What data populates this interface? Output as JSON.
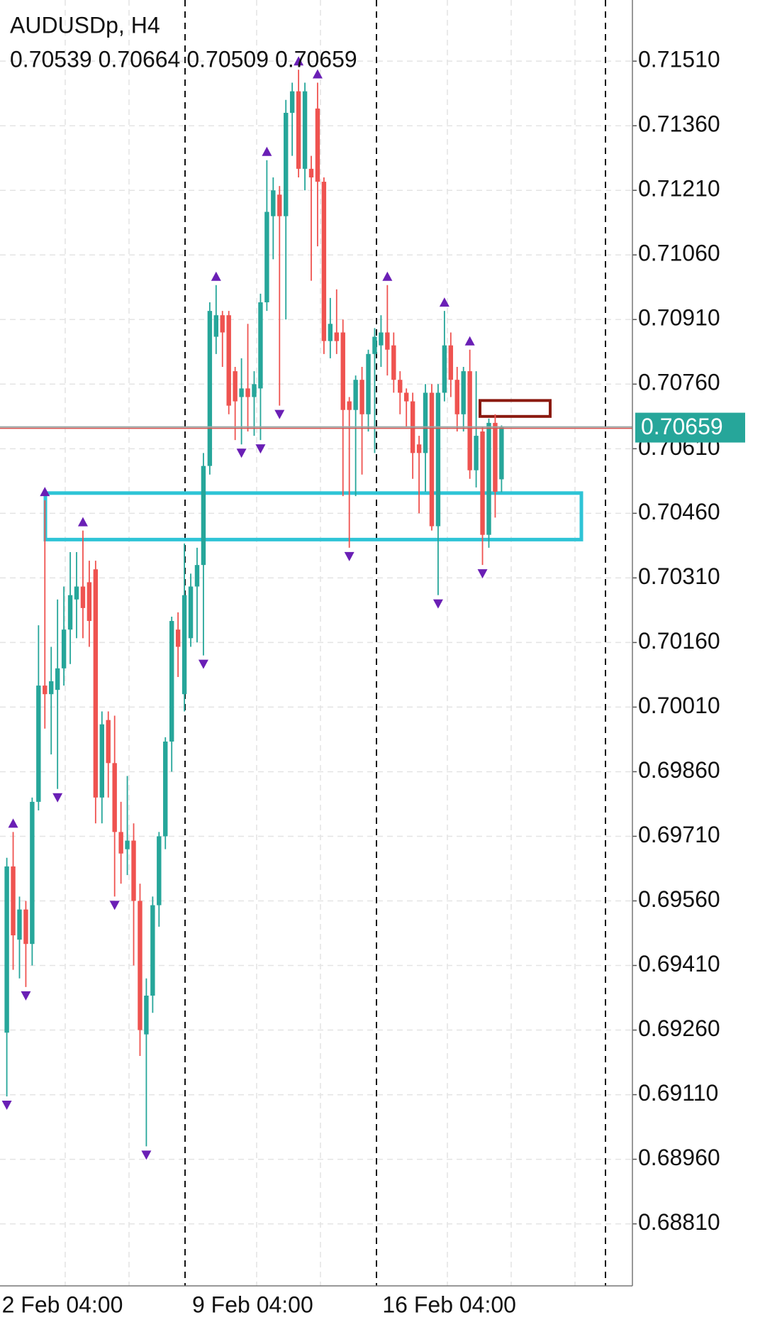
{
  "chart_data": {
    "type": "candlestick",
    "title": "AUDUSDp, H4",
    "categories": [
      "2 Feb 04:00",
      null,
      null,
      null,
      null,
      null,
      null,
      null,
      null,
      null,
      null,
      null,
      null,
      null,
      null,
      null,
      null,
      null,
      null,
      null,
      null,
      null,
      null,
      null,
      null,
      null,
      null,
      null,
      null,
      null,
      "9 Feb 04:00",
      null,
      null,
      null,
      null,
      null,
      null,
      null,
      null,
      null,
      null,
      null,
      null,
      null,
      null,
      null,
      null,
      null,
      null,
      null,
      null,
      null,
      null,
      null,
      null,
      null,
      null,
      null,
      null,
      null,
      "16 Feb 04:00",
      null,
      null,
      null,
      null,
      null,
      null,
      null,
      null,
      null,
      null,
      null,
      null,
      null,
      null,
      null,
      null,
      null,
      null
    ],
    "open": [
      0.69254,
      0.6964,
      0.6947,
      0.6954,
      0.6946,
      0.6979,
      0.7006,
      0.7004,
      0.7005,
      0.701,
      0.7019,
      0.7026,
      0.7029,
      0.703,
      0.7033,
      0.698,
      0.6998,
      0.6988,
      0.6972,
      0.6968,
      0.697,
      0.6956,
      0.6925,
      0.6934,
      0.6955,
      0.6971,
      0.6993,
      0.7019,
      0.7004,
      0.7017,
      0.7029,
      0.7034,
      0.7057,
      0.7087,
      0.7092,
      0.7092,
      0.7079,
      0.7073,
      0.7075,
      0.7073,
      0.7075,
      0.7095,
      0.7115,
      0.712,
      0.7115,
      0.7139,
      0.7144,
      0.7126,
      0.7126,
      0.714,
      0.7123,
      0.7086,
      0.7088,
      0.7088,
      0.7072,
      0.707,
      0.7077,
      0.7069,
      0.7083,
      0.7085,
      0.7088,
      0.7085,
      0.7077,
      0.7074,
      0.7072,
      0.7062,
      0.706,
      0.7074,
      0.7043,
      0.7074,
      0.7085,
      0.7077,
      0.7069,
      0.7079,
      0.7056,
      0.7065,
      0.7041,
      0.7067,
      0.70539
    ],
    "high": [
      0.6966,
      0.6972,
      0.6957,
      0.6956,
      0.698,
      0.702,
      0.7049,
      0.7015,
      0.7026,
      0.7029,
      0.7037,
      0.7037,
      0.7042,
      0.7035,
      0.7035,
      0.7,
      0.7,
      0.6999,
      0.6979,
      0.6985,
      0.6974,
      0.696,
      0.6938,
      0.6957,
      0.6972,
      0.6994,
      0.7022,
      0.7023,
      0.7039,
      0.7032,
      0.7038,
      0.706,
      0.7095,
      0.7099,
      0.7093,
      0.7093,
      0.708,
      0.7082,
      0.709,
      0.7079,
      0.7097,
      0.7128,
      0.7124,
      0.7122,
      0.7142,
      0.7146,
      0.7149,
      0.7146,
      0.7129,
      0.7146,
      0.7124,
      0.7096,
      0.7098,
      0.7091,
      0.7073,
      0.7078,
      0.708,
      0.7084,
      0.7089,
      0.7092,
      0.7099,
      0.7088,
      0.7079,
      0.7075,
      0.7074,
      0.7064,
      0.7076,
      0.7076,
      0.7076,
      0.7093,
      0.7088,
      0.708,
      0.708,
      0.7084,
      0.7079,
      0.7066,
      0.7068,
      0.7069,
      0.70664
    ],
    "low": [
      0.69106,
      0.694,
      0.6938,
      0.6936,
      0.6941,
      0.6977,
      0.6996,
      0.699,
      0.6982,
      0.7006,
      0.7011,
      0.7017,
      0.7017,
      0.7015,
      0.6974,
      0.6974,
      0.698,
      0.6957,
      0.696,
      0.6962,
      0.6941,
      0.692,
      0.6899,
      0.693,
      0.695,
      0.6968,
      0.6986,
      0.7008,
      0.7,
      0.7015,
      0.7016,
      0.7013,
      0.7055,
      0.7083,
      0.708,
      0.7069,
      0.7063,
      0.7062,
      0.7065,
      0.7064,
      0.7063,
      0.7093,
      0.7105,
      0.7071,
      0.7091,
      0.7129,
      0.7124,
      0.7121,
      0.71,
      0.7108,
      0.7083,
      0.7082,
      0.7083,
      0.705,
      0.7038,
      0.705,
      0.7055,
      0.7065,
      0.706,
      0.708,
      0.7078,
      0.7074,
      0.7069,
      0.7066,
      0.7054,
      0.7046,
      0.7051,
      0.7042,
      0.7027,
      0.7072,
      0.7073,
      0.7065,
      0.7065,
      0.7054,
      0.7052,
      0.7034,
      0.7038,
      0.7045,
      0.70509
    ],
    "close": [
      0.6964,
      0.6948,
      0.6954,
      0.6946,
      0.6979,
      0.7006,
      0.7004,
      0.7007,
      0.701,
      0.7019,
      0.7027,
      0.7029,
      0.7024,
      0.7021,
      0.698,
      0.6997,
      0.6988,
      0.6972,
      0.6967,
      0.697,
      0.6956,
      0.6926,
      0.6934,
      0.6955,
      0.6971,
      0.6993,
      0.7021,
      0.7015,
      0.7027,
      0.7029,
      0.7034,
      0.7057,
      0.7093,
      0.7092,
      0.7088,
      0.7071,
      0.7072,
      0.7075,
      0.7073,
      0.7076,
      0.7095,
      0.7116,
      0.7121,
      0.7115,
      0.7139,
      0.7144,
      0.7126,
      0.7144,
      0.7124,
      0.7123,
      0.7086,
      0.709,
      0.7086,
      0.707,
      0.707,
      0.7077,
      0.7069,
      0.7083,
      0.7087,
      0.7088,
      0.7084,
      0.7077,
      0.7074,
      0.7072,
      0.706,
      0.706,
      0.7074,
      0.7043,
      0.7074,
      0.7085,
      0.7077,
      0.7069,
      0.7079,
      0.7056,
      0.7064,
      0.7041,
      0.7067,
      0.7051,
      0.70659
    ],
    "fractal_up": [
      null,
      0.6972,
      null,
      null,
      null,
      null,
      0.7049,
      null,
      null,
      null,
      null,
      null,
      0.7042,
      null,
      null,
      null,
      null,
      null,
      null,
      null,
      null,
      null,
      null,
      null,
      null,
      null,
      null,
      null,
      null,
      null,
      null,
      null,
      null,
      0.7099,
      null,
      null,
      null,
      null,
      null,
      null,
      null,
      0.7128,
      null,
      null,
      null,
      null,
      0.7149,
      null,
      null,
      0.7146,
      null,
      null,
      null,
      null,
      null,
      null,
      null,
      null,
      null,
      null,
      0.7099,
      null,
      null,
      null,
      null,
      null,
      null,
      null,
      null,
      0.7093,
      null,
      null,
      null,
      0.7084,
      null,
      null,
      null,
      null,
      null
    ],
    "fractal_down": [
      0.69106,
      null,
      null,
      0.6936,
      null,
      null,
      null,
      null,
      0.6982,
      null,
      null,
      null,
      null,
      null,
      null,
      null,
      null,
      0.6957,
      null,
      null,
      null,
      null,
      0.6899,
      null,
      null,
      null,
      null,
      null,
      null,
      null,
      null,
      0.7013,
      null,
      null,
      null,
      null,
      null,
      0.7062,
      null,
      null,
      0.7063,
      null,
      null,
      0.7071,
      null,
      null,
      null,
      null,
      null,
      null,
      null,
      null,
      null,
      null,
      0.7038,
      null,
      null,
      null,
      null,
      null,
      null,
      null,
      null,
      null,
      null,
      null,
      null,
      null,
      0.7027,
      null,
      null,
      null,
      null,
      null,
      null,
      0.7034,
      null,
      null,
      null
    ],
    "up_color": "#26a69a",
    "down_color": "#ef5350",
    "fractal_color": "#6a1fb5",
    "zones": [
      {
        "top": 0.70507,
        "bottom": 0.70399,
        "color": "#2ec4d6"
      },
      {
        "top": 0.70722,
        "bottom": 0.70685,
        "color": "#8b1a10"
      }
    ],
    "ylim": [
      0.68666,
      0.71652
    ],
    "yticks": [
      {
        "value": 0.7151,
        "label": "0.71510"
      },
      {
        "value": 0.7136,
        "label": "0.71360"
      },
      {
        "value": 0.7121,
        "label": "0.71210"
      },
      {
        "value": 0.7106,
        "label": "0.71060"
      },
      {
        "value": 0.7091,
        "label": "0.70910"
      },
      {
        "value": 0.7076,
        "label": "0.70760"
      },
      {
        "value": 0.7061,
        "label": "0.70610"
      },
      {
        "value": 0.7046,
        "label": "0.70460"
      },
      {
        "value": 0.7031,
        "label": "0.70310"
      },
      {
        "value": 0.7016,
        "label": "0.70160"
      },
      {
        "value": 0.7001,
        "label": "0.70010"
      },
      {
        "value": 0.6986,
        "label": "0.69860"
      },
      {
        "value": 0.6971,
        "label": "0.69710"
      },
      {
        "value": 0.6956,
        "label": "0.69560"
      },
      {
        "value": 0.6941,
        "label": "0.69410"
      },
      {
        "value": 0.6926,
        "label": "0.69260"
      },
      {
        "value": 0.6911,
        "label": "0.69110"
      },
      {
        "value": 0.6896,
        "label": "0.68960"
      },
      {
        "value": 0.6881,
        "label": "0.68810"
      }
    ],
    "grid": true
  }
}
